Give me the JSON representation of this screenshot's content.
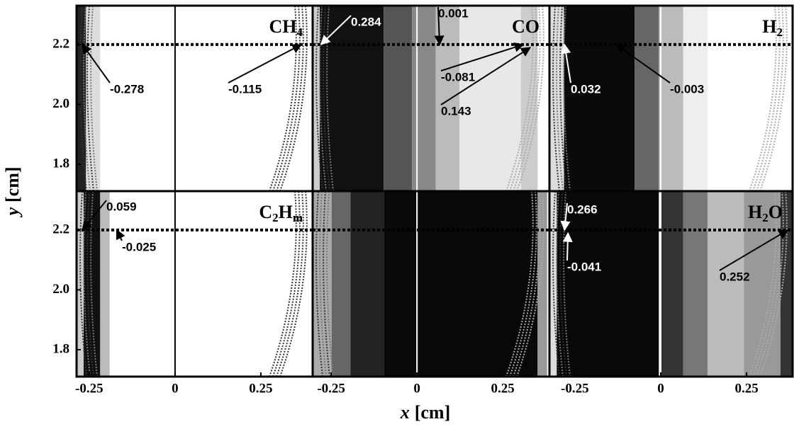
{
  "chart_data": {
    "type": "contour",
    "xlabel": [
      "x",
      "[cm]"
    ],
    "ylabel": [
      "y",
      "[cm]"
    ],
    "xticks": [
      -0.25,
      0,
      0.25
    ],
    "yticks": [
      1.8,
      {
        "value": 2,
        "label": "2.0"
      },
      2.2
    ],
    "ylim": [
      1.71,
      2.33
    ],
    "guide_y": 2.2,
    "panels": [
      {
        "title_parts": [
          "CH",
          "4"
        ],
        "xlim": [
          -0.287,
          0.401
        ],
        "annotations": [
          {
            "value": -0.278,
            "x": -0.27,
            "y": 2.2
          },
          {
            "value": -0.115,
            "x": 0.368,
            "y": 2.2
          }
        ]
      },
      {
        "title_parts": [
          "CO"
        ],
        "xlim": [
          -0.304,
          0.386
        ],
        "annotations": [
          {
            "value": 0.284,
            "x": -0.28,
            "y": 2.2
          },
          {
            "value": 0.001,
            "x": 0.066,
            "y": 2.2
          },
          {
            "value": -0.081,
            "x": 0.31,
            "y": 2.2
          },
          {
            "value": 0.143,
            "x": 0.33,
            "y": 2.19
          }
        ]
      },
      {
        "title_parts": [
          "H",
          "2"
        ],
        "xlim": [
          -0.324,
          0.384
        ],
        "annotations": [
          {
            "value": 0.032,
            "x": -0.28,
            "y": 2.2
          },
          {
            "value": -0.003,
            "x": -0.13,
            "y": 2.2
          }
        ]
      },
      {
        "title_parts": [
          "C",
          "2",
          "H",
          "m"
        ],
        "xlim": [
          -0.287,
          0.401
        ],
        "annotations": [
          {
            "value": 0.059,
            "x": -0.27,
            "y": 2.2
          },
          {
            "value": -0.025,
            "x": -0.17,
            "y": 2.2
          }
        ]
      },
      {
        "title_parts": [],
        "xlim": [
          -0.304,
          0.386
        ],
        "annotations": []
      },
      {
        "title_parts": [
          "H",
          "2",
          "O"
        ],
        "xlim": [
          -0.324,
          0.384
        ],
        "annotations": [
          {
            "value": 0.266,
            "x": -0.28,
            "y": 2.2
          },
          {
            "value": -0.041,
            "x": -0.27,
            "y": 2.19
          },
          {
            "value": 0.252,
            "x": 0.37,
            "y": 2.2
          }
        ]
      }
    ]
  }
}
